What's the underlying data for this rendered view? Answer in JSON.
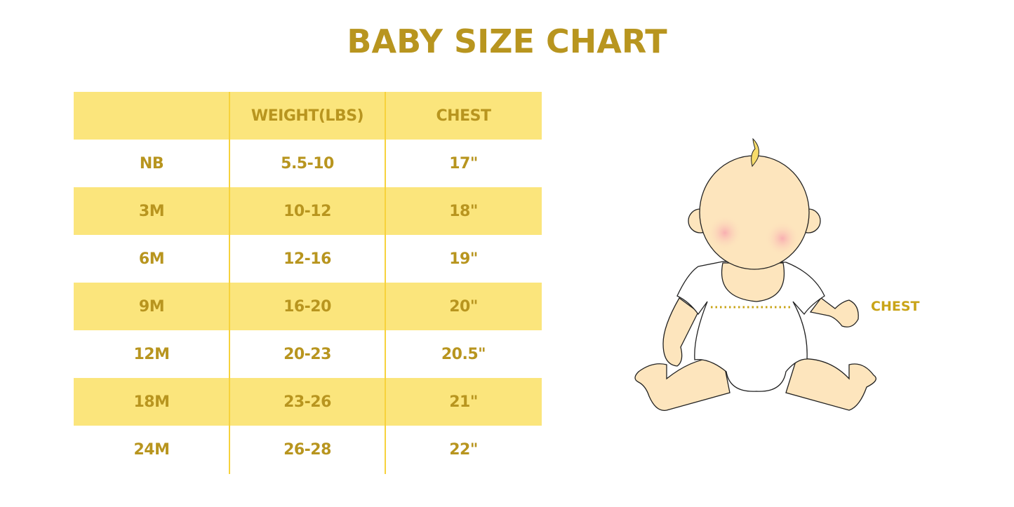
{
  "title": "BABY SIZE CHART",
  "table": {
    "headers": [
      "",
      "WEIGHT(LBS)",
      "CHEST"
    ],
    "rows": [
      [
        "NB",
        "5.5-10",
        "17\""
      ],
      [
        "3M",
        "10-12",
        "18\""
      ],
      [
        "6M",
        "12-16",
        "19\""
      ],
      [
        "9M",
        "16-20",
        "20\""
      ],
      [
        "12M",
        "20-23",
        "20.5\""
      ],
      [
        "18M",
        "23-26",
        "21\""
      ],
      [
        "24M",
        "26-28",
        "22\""
      ]
    ]
  },
  "illustration": {
    "chest_label": "CHEST"
  },
  "colors": {
    "accent": "#b8951f",
    "band": "#fbe57c",
    "divider": "#f7d23c",
    "skin": "#fde5bd"
  }
}
